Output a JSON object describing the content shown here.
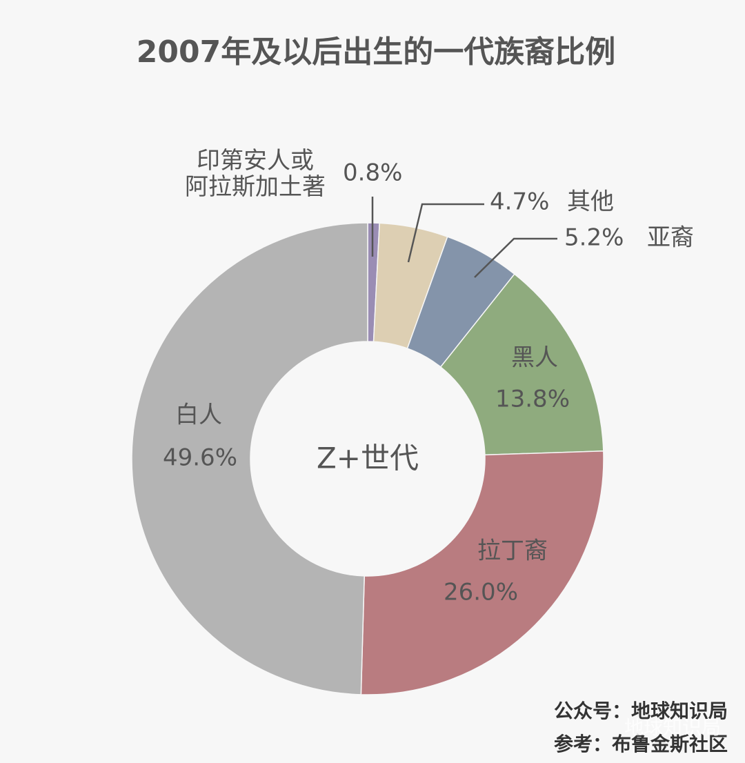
{
  "chart_data": {
    "type": "donut",
    "title": "2007年及以后出生的一代族裔比例",
    "center_label": "Z+世代",
    "categories": [
      "印第安人或\n阿拉斯加土著",
      "其他",
      "亚裔",
      "黑人",
      "拉丁裔",
      "白人"
    ],
    "values": [
      0.8,
      4.7,
      5.2,
      13.8,
      26.0,
      49.6
    ],
    "value_labels": [
      "0.8%",
      "4.7%",
      "5.2%",
      "13.8%",
      "26.0%",
      "49.6%"
    ],
    "colors": [
      "#9a8db4",
      "#ddcfb3",
      "#8494aa",
      "#8fab7e",
      "#b97c80",
      "#b4b4b4"
    ],
    "source": "公众号：地球知识局",
    "reference": "参考：布鲁金斯社区",
    "watermark": "地球知识局"
  }
}
